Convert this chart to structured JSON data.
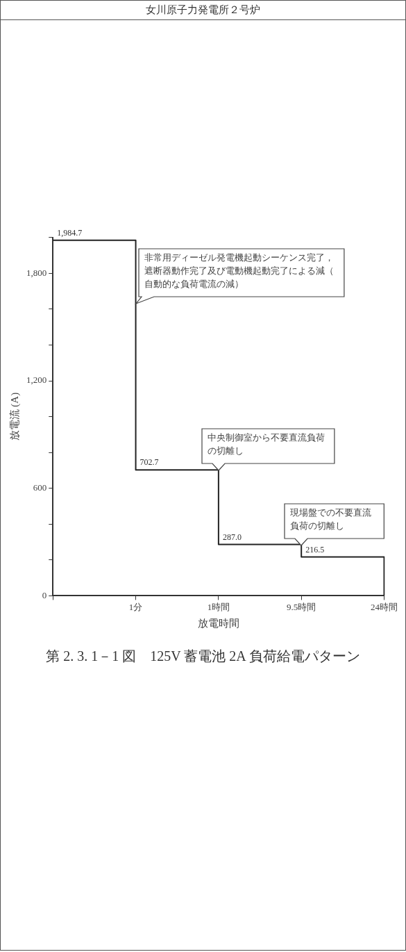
{
  "chart_data": {
    "type": "step",
    "subtitle": "女川原子力発電所２号炉",
    "title": "第 2. 3. 1－1 図　125V 蓄電池 2A 負荷給電パターン",
    "xlabel": "放電時間",
    "ylabel": "放電流 (A)",
    "categories": [
      null,
      "1分",
      "1時間",
      "9.5時間",
      "24時間"
    ],
    "series": [
      {
        "color": "#222222",
        "values": [
          1984.7,
          702.7,
          287.0,
          216.5,
          0
        ],
        "value_labels": [
          "1,984.7",
          "702.7",
          "287.0",
          "216.5",
          null
        ]
      }
    ],
    "ylim": [
      0,
      2000
    ],
    "yticks": [
      0,
      {
        "value": 200,
        "label": null
      },
      {
        "value": 400,
        "label": null
      },
      {
        "value": 600,
        "label": "600"
      },
      {
        "value": 800,
        "label": null
      },
      {
        "value": 1000,
        "label": null
      },
      {
        "value": 1200,
        "label": "1,200"
      },
      {
        "value": 1400,
        "label": null
      },
      {
        "value": 1600,
        "label": null
      },
      {
        "value": 1800,
        "label": "1,800"
      },
      {
        "value": 2000,
        "label": null
      }
    ],
    "annotations": [
      {
        "text": "非常用ディーゼル発電機起動シーケンス完了，遮断器動作完了及び電動機起動完了による減（自動的な負荷電流の減）",
        "x": "1分",
        "y": 1630
      },
      {
        "text": "中央制御室から不要直流負荷の切離し",
        "x": "1時間",
        "y": 700
      },
      {
        "text": "現場盤での不要直流負荷の切離し",
        "x": "9.5時間",
        "y": 280
      }
    ],
    "grid": false,
    "legend": false,
    "marker": "none",
    "line_style": "solid"
  }
}
